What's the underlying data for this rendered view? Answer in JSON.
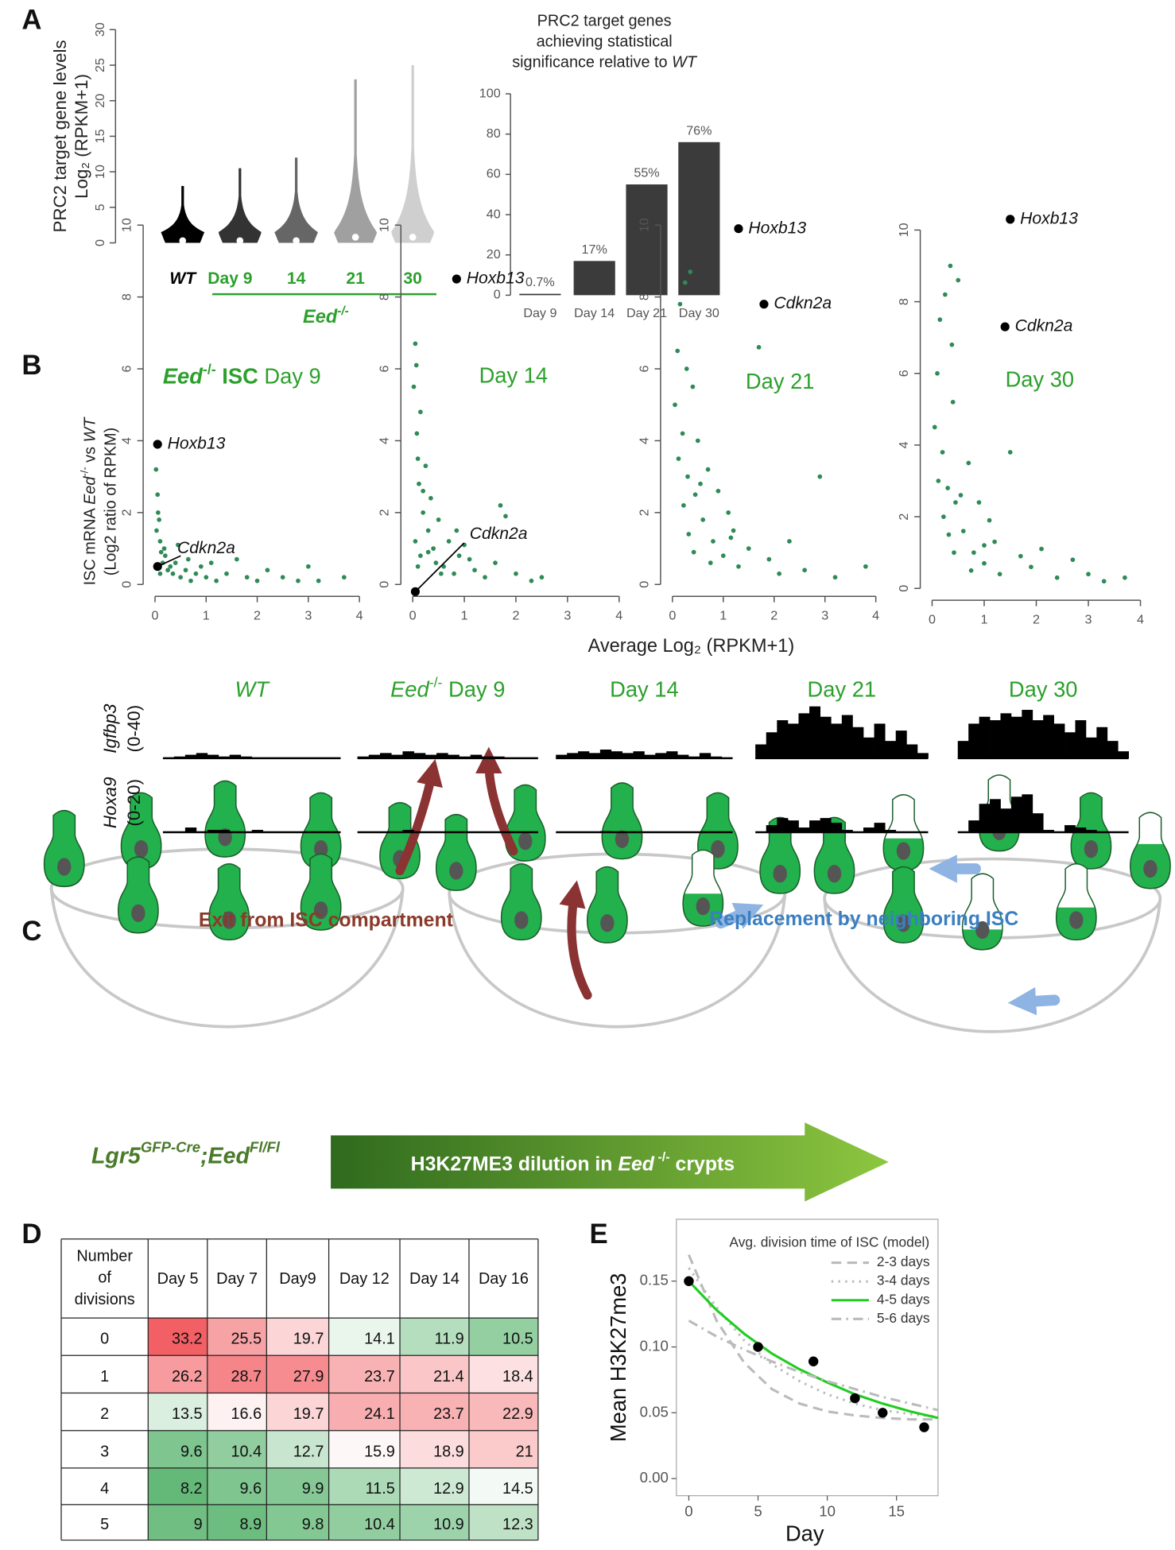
{
  "panel_labels": [
    "A",
    "B",
    "C",
    "D",
    "E"
  ],
  "chart_data": [
    {
      "type": "violin",
      "ylabel": [
        "PRC2 target gene levels",
        "Log₂ (RPKM+1)"
      ],
      "categories": [
        "WT",
        "Day 9",
        "14",
        "21",
        "30"
      ],
      "group_label": [
        "Eed",
        "-/-"
      ],
      "max": [
        8,
        10.5,
        12,
        23,
        25
      ],
      "median": [
        0.3,
        0.3,
        0.3,
        0.8,
        0.8
      ],
      "colors": [
        "#000000",
        "#333333",
        "#666666",
        "#a0a0a0",
        "#cfcfcf"
      ],
      "category_colors": [
        "#000000",
        "#2ca02c",
        "#2ca02c",
        "#2ca02c",
        "#2ca02c"
      ],
      "ylim": [
        0,
        30
      ],
      "yticks": [
        0,
        5,
        10,
        15,
        20,
        25,
        30
      ]
    },
    {
      "type": "bar",
      "title": [
        "PRC2 target genes",
        "achieving statistical",
        [
          "significance relative to ",
          "WT"
        ]
      ],
      "categories": [
        "Day 9",
        "Day 14",
        "Day 21",
        "Day 30"
      ],
      "values": [
        0.7,
        17,
        55,
        76
      ],
      "value_labels": [
        "0.7%",
        "17%",
        "55%",
        "76%"
      ],
      "color": "#3b3b3b",
      "ylim": [
        0,
        100
      ],
      "yticks": [
        0,
        20,
        40,
        60,
        80,
        100
      ]
    },
    {
      "type": "scatter",
      "ylabel": [
        [
          "ISC mRNA ",
          "Eed",
          "-/-",
          " vs ",
          "WT"
        ],
        [
          "(Log2 ratio of RPKM)"
        ]
      ],
      "xlabel": "Average Log₂ (RPKM+1)",
      "color": "#2e8b57",
      "highlight_color": "#000000",
      "xlim": [
        0,
        4
      ],
      "xticks": [
        0,
        1,
        2,
        3,
        4
      ],
      "ylim": [
        0,
        10
      ],
      "yticks": [
        0,
        2,
        4,
        6,
        8,
        10
      ],
      "panels": [
        {
          "title": [
            "Eed",
            "-/-",
            " ISC",
            " Day 9"
          ],
          "x": [
            0.02,
            0.05,
            0.08,
            0.1,
            0.12,
            0.15,
            0.2,
            0.25,
            0.3,
            0.35,
            0.4,
            0.5,
            0.6,
            0.7,
            0.8,
            0.9,
            1.0,
            1.1,
            1.2,
            1.4,
            1.6,
            1.8,
            2.0,
            2.2,
            2.5,
            2.8,
            3.0,
            3.2,
            3.7,
            0.03,
            0.06,
            0.1,
            0.18,
            0.45,
            0.65
          ],
          "y": [
            3.2,
            2.5,
            1.8,
            1.2,
            0.9,
            0.6,
            0.8,
            0.4,
            0.5,
            0.3,
            0.6,
            0.2,
            0.4,
            0.1,
            0.3,
            0.5,
            0.2,
            0.6,
            0.1,
            0.3,
            0.7,
            0.2,
            0.1,
            0.4,
            0.2,
            0.1,
            0.5,
            0.1,
            0.2,
            1.5,
            2.0,
            0.3,
            1.0,
            1.1,
            0.7
          ],
          "genes": [
            {
              "name": "Hoxb13",
              "x": 0.05,
              "y": 3.9
            },
            {
              "name": "Cdkn2a",
              "x": 0.05,
              "y": 0.5
            }
          ]
        },
        {
          "title": [
            "Day 14"
          ],
          "x": [
            0.02,
            0.05,
            0.08,
            0.1,
            0.12,
            0.15,
            0.2,
            0.25,
            0.3,
            0.35,
            0.4,
            0.5,
            0.6,
            0.7,
            0.8,
            0.9,
            1.0,
            1.2,
            1.4,
            1.6,
            1.7,
            1.8,
            2.0,
            2.3,
            2.5,
            0.05,
            0.1,
            0.15,
            0.2,
            0.3,
            0.45,
            0.55,
            0.85,
            1.1,
            0.07
          ],
          "y": [
            5.5,
            6.7,
            4.2,
            3.5,
            2.8,
            4.8,
            2.0,
            3.3,
            1.5,
            2.4,
            1.0,
            1.8,
            0.5,
            1.2,
            0.3,
            0.8,
            1.1,
            0.4,
            0.2,
            0.6,
            2.2,
            1.9,
            0.3,
            0.1,
            0.2,
            1.2,
            0.5,
            0.8,
            2.6,
            0.9,
            0.6,
            0.3,
            1.5,
            0.7,
            6.1
          ],
          "genes": [
            {
              "name": "Hoxb13",
              "x": 0.85,
              "y": 8.5
            },
            {
              "name": "Cdkn2a",
              "x": 0.05,
              "y": -0.2
            }
          ]
        },
        {
          "title": [
            "Day 21"
          ],
          "x": [
            0.05,
            0.1,
            0.15,
            0.2,
            0.25,
            0.3,
            0.35,
            0.4,
            0.45,
            0.5,
            0.6,
            0.7,
            0.8,
            0.9,
            1.0,
            1.1,
            1.2,
            1.3,
            1.5,
            1.7,
            1.9,
            2.1,
            2.3,
            2.6,
            2.9,
            3.2,
            3.8,
            0.12,
            0.22,
            0.32,
            0.42,
            0.55,
            0.75,
            1.15,
            0.28
          ],
          "y": [
            5.0,
            6.5,
            7.8,
            4.2,
            8.4,
            3.0,
            8.7,
            5.5,
            2.5,
            4.0,
            1.8,
            3.2,
            1.2,
            2.6,
            0.8,
            2.0,
            1.5,
            0.5,
            1.0,
            6.6,
            0.7,
            0.3,
            1.2,
            0.4,
            3.0,
            0.2,
            0.5,
            3.5,
            2.2,
            1.4,
            0.9,
            2.8,
            0.6,
            1.3,
            6.0
          ],
          "genes": [
            {
              "name": "Hoxb13",
              "x": 1.3,
              "y": 9.9
            },
            {
              "name": "Cdkn2a",
              "x": 1.8,
              "y": 7.8
            }
          ]
        },
        {
          "title": [
            "Day 30"
          ],
          "x": [
            0.05,
            0.1,
            0.15,
            0.2,
            0.25,
            0.3,
            0.35,
            0.4,
            0.45,
            0.5,
            0.6,
            0.7,
            0.8,
            0.9,
            1.0,
            1.1,
            1.2,
            1.3,
            1.5,
            1.7,
            1.9,
            2.1,
            2.4,
            2.7,
            3.0,
            3.3,
            3.7,
            0.12,
            0.22,
            0.32,
            0.42,
            0.55,
            0.75,
            1.0,
            0.38
          ],
          "y": [
            4.5,
            6.0,
            7.5,
            3.8,
            8.2,
            2.8,
            9.0,
            5.2,
            2.4,
            8.6,
            1.6,
            3.5,
            1.0,
            2.4,
            0.7,
            1.9,
            1.3,
            0.4,
            3.8,
            0.9,
            0.6,
            1.1,
            0.3,
            0.8,
            0.4,
            0.2,
            0.3,
            3.0,
            2.0,
            1.5,
            1.0,
            2.6,
            0.5,
            1.2,
            6.8
          ],
          "genes": [
            {
              "name": "Hoxb13",
              "x": 1.5,
              "y": 10.3
            },
            {
              "name": "Cdkn2a",
              "x": 1.4,
              "y": 7.3
            }
          ]
        }
      ]
    },
    {
      "type": "track",
      "color": "#000000",
      "columns": [
        [
          "WT"
        ],
        [
          "Eed",
          "-/-",
          " Day 9"
        ],
        [
          "Day 14"
        ],
        [
          "Day 21"
        ],
        [
          "Day 30"
        ]
      ],
      "column_color": "#2ca02c",
      "rows": [
        {
          "name": "Igfbp3",
          "range": "(0-40)",
          "ylim": [
            0,
            40
          ],
          "values": [
            [
              0,
              1,
              2,
              3,
              2,
              1,
              2,
              1,
              0,
              0,
              0,
              0,
              0,
              0,
              0,
              0
            ],
            [
              1,
              2,
              3,
              2,
              4,
              3,
              2,
              3,
              2,
              1,
              2,
              1,
              1,
              0,
              0,
              0
            ],
            [
              2,
              3,
              4,
              3,
              5,
              4,
              3,
              4,
              2,
              3,
              4,
              2,
              1,
              3,
              1,
              0
            ],
            [
              8,
              15,
              22,
              20,
              26,
              30,
              24,
              20,
              25,
              18,
              12,
              20,
              10,
              16,
              8,
              3
            ],
            [
              10,
              20,
              24,
              22,
              26,
              24,
              28,
              22,
              25,
              20,
              15,
              22,
              12,
              18,
              10,
              4
            ]
          ]
        },
        {
          "name": "Hoxa9",
          "range": "(0-20)",
          "ylim": [
            0,
            20
          ],
          "values": [
            [
              0,
              0,
              2,
              0,
              1,
              1,
              0,
              0,
              1,
              0,
              0,
              0,
              0,
              0,
              0,
              0
            ],
            [
              0,
              0,
              0,
              0,
              1,
              0,
              0,
              0,
              0,
              0,
              0,
              0,
              0,
              0,
              0,
              0
            ],
            [
              0,
              0,
              0,
              0,
              0.5,
              0,
              0,
              0,
              0,
              0,
              0,
              0,
              0,
              0,
              0,
              0
            ],
            [
              0,
              3,
              6,
              5,
              2,
              5,
              6,
              4,
              1,
              0,
              2,
              4,
              1,
              0,
              0,
              0
            ],
            [
              0,
              5,
              12,
              14,
              10,
              15,
              16,
              8,
              1,
              0,
              3,
              2,
              1,
              0,
              0,
              0
            ]
          ]
        }
      ]
    },
    {
      "type": "line",
      "xlabel": "Day",
      "ylabel": "Mean H3K27me3",
      "xlim": [
        -0.9,
        18
      ],
      "ylim": [
        -0.013,
        0.197
      ],
      "xticks": [
        0,
        5,
        10,
        15
      ],
      "yticks": [
        {
          "value": 0,
          "label": "0.00"
        },
        0.05,
        {
          "value": 0.1,
          "label": "0.10"
        },
        0.15
      ],
      "legend_title": "Avg. division time of ISC (model)",
      "points": {
        "x": [
          0,
          5,
          9,
          12,
          14,
          17
        ],
        "y": [
          0.15,
          0.1,
          0.089,
          0.061,
          0.05,
          0.039
        ],
        "color": "#000000"
      },
      "x": [
        0,
        2,
        4,
        6,
        8,
        10,
        12,
        14,
        16,
        18
      ],
      "series": [
        {
          "name": "2-3 days",
          "color": "#bbbbbb",
          "dash": "dashed",
          "values": [
            0.17,
            0.12,
            0.088,
            0.068,
            0.057,
            0.051,
            0.048,
            0.046,
            0.045,
            0.045
          ]
        },
        {
          "name": "3-4 days",
          "color": "#bbbbbb",
          "dash": "dotted",
          "values": [
            0.16,
            0.13,
            0.105,
            0.087,
            0.074,
            0.064,
            0.057,
            0.052,
            0.049,
            0.047
          ]
        },
        {
          "name": "4-5 days",
          "color": "#22cc22",
          "dash": "solid",
          "values": [
            0.15,
            0.128,
            0.11,
            0.095,
            0.083,
            0.073,
            0.064,
            0.057,
            0.051,
            0.046
          ]
        },
        {
          "name": "5-6 days",
          "color": "#bbbbbb",
          "dash": "dotdash",
          "values": [
            0.12,
            0.108,
            0.098,
            0.089,
            0.081,
            0.074,
            0.068,
            0.062,
            0.057,
            0.052
          ]
        }
      ]
    }
  ],
  "diagram": {
    "exit": "Exit from ISC compartment",
    "replacement": "Replacement by neighboring ISC",
    "genotype": [
      "Lgr5",
      "GFP-Cre",
      ";Eed",
      "Fl/Fl"
    ],
    "dilution": [
      "H3K27ME3 dilution in ",
      "Eed",
      " -/-",
      " crypts"
    ]
  },
  "table": {
    "header": [
      [
        "Number",
        "of",
        "divisions"
      ],
      "Day 5",
      "Day 7",
      "Day9",
      "Day 12",
      "Day 14",
      "Day 16"
    ],
    "rows": [
      [
        0,
        33.2,
        25.5,
        19.7,
        14.1,
        11.9,
        10.5
      ],
      [
        1,
        26.2,
        28.7,
        27.9,
        23.7,
        21.4,
        18.4
      ],
      [
        2,
        13.5,
        16.6,
        19.7,
        24.1,
        23.7,
        22.9
      ],
      [
        3,
        9.6,
        10.4,
        12.7,
        15.9,
        18.9,
        21
      ],
      [
        4,
        8.2,
        9.6,
        9.9,
        11.5,
        12.9,
        14.5
      ],
      [
        5,
        9,
        8.9,
        9.8,
        10.4,
        10.9,
        12.3
      ]
    ]
  }
}
